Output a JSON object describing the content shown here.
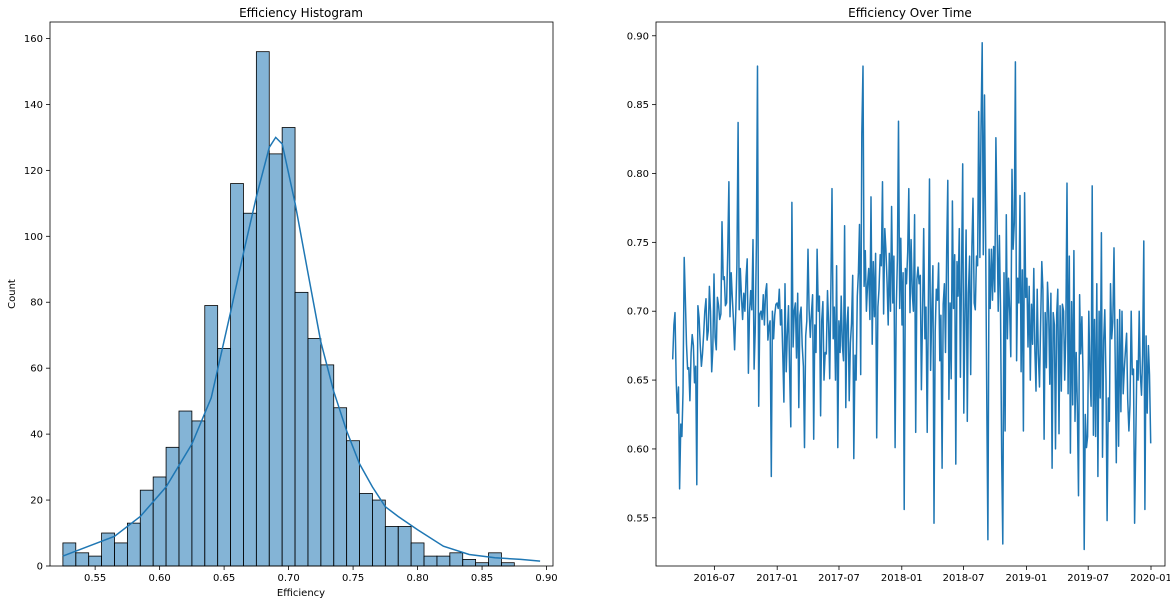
{
  "chart_data": [
    {
      "type": "bar",
      "title": "Efficiency Histogram",
      "xlabel": "Efficiency",
      "ylabel": "Count",
      "xlim": [
        0.515,
        0.905
      ],
      "ylim": [
        0,
        165
      ],
      "bin_width": 0.01,
      "bin_start": 0.525,
      "values": [
        7,
        4,
        3,
        10,
        7,
        13,
        23,
        27,
        36,
        47,
        44,
        79,
        66,
        116,
        107,
        156,
        125,
        133,
        83,
        69,
        61,
        48,
        38,
        22,
        20,
        12,
        12,
        7,
        3,
        3,
        4,
        2,
        1,
        4,
        1
      ],
      "kde": {
        "x": [
          0.525,
          0.545,
          0.565,
          0.585,
          0.605,
          0.625,
          0.64,
          0.655,
          0.665,
          0.675,
          0.685,
          0.69,
          0.695,
          0.705,
          0.715,
          0.725,
          0.735,
          0.745,
          0.755,
          0.765,
          0.775,
          0.785,
          0.8,
          0.82,
          0.84,
          0.86,
          0.88,
          0.895
        ],
        "y": [
          3,
          6,
          9,
          15,
          24,
          37,
          51,
          77,
          95,
          112,
          127,
          130,
          128,
          110,
          89,
          68,
          53,
          41,
          31,
          24,
          18,
          15,
          11,
          6,
          3.5,
          2.5,
          2,
          1.5
        ]
      },
      "xticks": [
        0.55,
        0.6,
        0.65,
        0.7,
        0.75,
        0.8,
        0.85,
        0.9
      ],
      "xtick_labels": [
        "0.55",
        "0.60",
        "0.65",
        "0.70",
        "0.75",
        "0.80",
        "0.85",
        "0.90"
      ],
      "yticks": [
        0,
        20,
        40,
        60,
        80,
        100,
        120,
        140,
        160
      ],
      "ytick_labels": [
        "0",
        "20",
        "40",
        "60",
        "80",
        "100",
        "120",
        "140",
        "160"
      ],
      "grid": false,
      "color": "#1f77b4"
    },
    {
      "type": "line",
      "title": "Efficiency Over Time",
      "xlabel": "",
      "ylabel": "",
      "xlim": [
        "2016-01-12",
        "2020-02-11"
      ],
      "ylim": [
        0.515,
        0.91
      ],
      "x_start": "2016-03-01",
      "x_end": "2019-12-31",
      "y": [
        0.665,
        0.69,
        0.699,
        0.65,
        0.626,
        0.645,
        0.571,
        0.618,
        0.609,
        0.641,
        0.739,
        0.71,
        0.676,
        0.658,
        0.659,
        0.635,
        0.67,
        0.683,
        0.675,
        0.648,
        0.66,
        0.574,
        0.704,
        0.695,
        0.676,
        0.66,
        0.669,
        0.684,
        0.7,
        0.709,
        0.679,
        0.686,
        0.718,
        0.7,
        0.656,
        0.672,
        0.727,
        0.681,
        0.672,
        0.71,
        0.704,
        0.694,
        0.698,
        0.765,
        0.723,
        0.725,
        0.704,
        0.706,
        0.742,
        0.794,
        0.696,
        0.728,
        0.71,
        0.693,
        0.672,
        0.7,
        0.733,
        0.837,
        0.701,
        0.731,
        0.71,
        0.694,
        0.713,
        0.7,
        0.725,
        0.738,
        0.655,
        0.699,
        0.715,
        0.701,
        0.752,
        0.658,
        0.685,
        0.749,
        0.878,
        0.631,
        0.698,
        0.7,
        0.694,
        0.712,
        0.69,
        0.714,
        0.72,
        0.679,
        0.689,
        0.693,
        0.58,
        0.7,
        0.68,
        0.697,
        0.705,
        0.706,
        0.702,
        0.716,
        0.69,
        0.701,
        0.668,
        0.634,
        0.72,
        0.656,
        0.683,
        0.704,
        0.657,
        0.616,
        0.779,
        0.674,
        0.7,
        0.706,
        0.666,
        0.713,
        0.63,
        0.697,
        0.703,
        0.675,
        0.66,
        0.601,
        0.682,
        0.693,
        0.745,
        0.701,
        0.681,
        0.698,
        0.712,
        0.607,
        0.69,
        0.67,
        0.745,
        0.7,
        0.711,
        0.624,
        0.693,
        0.707,
        0.65,
        0.67,
        0.669,
        0.715,
        0.691,
        0.651,
        0.718,
        0.789,
        0.68,
        0.703,
        0.65,
        0.733,
        0.601,
        0.693,
        0.67,
        0.711,
        0.675,
        0.664,
        0.762,
        0.63,
        0.69,
        0.703,
        0.635,
        0.677,
        0.691,
        0.726,
        0.593,
        0.668,
        0.65,
        0.711,
        0.728,
        0.763,
        0.654,
        0.829,
        0.878,
        0.718,
        0.744,
        0.7,
        0.72,
        0.731,
        0.694,
        0.783,
        0.676,
        0.736,
        0.696,
        0.742,
        0.608,
        0.703,
        0.716,
        0.741,
        0.733,
        0.794,
        0.698,
        0.76,
        0.745,
        0.72,
        0.69,
        0.742,
        0.7,
        0.776,
        0.706,
        0.74,
        0.601,
        0.7,
        0.738,
        0.838,
        0.702,
        0.753,
        0.69,
        0.728,
        0.556,
        0.731,
        0.72,
        0.743,
        0.789,
        0.699,
        0.752,
        0.713,
        0.7,
        0.77,
        0.612,
        0.723,
        0.732,
        0.72,
        0.726,
        0.643,
        0.7,
        0.76,
        0.68,
        0.703,
        0.612,
        0.7,
        0.796,
        0.657,
        0.701,
        0.733,
        0.546,
        0.685,
        0.716,
        0.708,
        0.735,
        0.664,
        0.697,
        0.586,
        0.705,
        0.72,
        0.67,
        0.745,
        0.795,
        0.636,
        0.706,
        0.651,
        0.78,
        0.702,
        0.741,
        0.589,
        0.736,
        0.711,
        0.76,
        0.652,
        0.733,
        0.807,
        0.626,
        0.7,
        0.759,
        0.62,
        0.713,
        0.74,
        0.654,
        0.747,
        0.782,
        0.706,
        0.701,
        0.74,
        0.733,
        0.845,
        0.739,
        0.832,
        0.895,
        0.741,
        0.857,
        0.757,
        0.633,
        0.534,
        0.745,
        0.702,
        0.745,
        0.708,
        0.747,
        0.714,
        0.826,
        0.763,
        0.7,
        0.755,
        0.703,
        0.593,
        0.531,
        0.728,
        0.613,
        0.77,
        0.68,
        0.724,
        0.7,
        0.667,
        0.803,
        0.745,
        0.764,
        0.881,
        0.664,
        0.724,
        0.706,
        0.784,
        0.656,
        0.73,
        0.613,
        0.786,
        0.71,
        0.724,
        0.674,
        0.718,
        0.65,
        0.705,
        0.676,
        0.731,
        0.671,
        0.642,
        0.716,
        0.669,
        0.645,
        0.69,
        0.736,
        0.716,
        0.607,
        0.699,
        0.659,
        0.721,
        0.699,
        0.647,
        0.713,
        0.586,
        0.699,
        0.69,
        0.6,
        0.698,
        0.716,
        0.611,
        0.704,
        0.642,
        0.705,
        0.7,
        0.65,
        0.684,
        0.793,
        0.64,
        0.74,
        0.597,
        0.707,
        0.632,
        0.744,
        0.62,
        0.67,
        0.633,
        0.566,
        0.712,
        0.669,
        0.696,
        0.656,
        0.527,
        0.625,
        0.601,
        0.609,
        0.7,
        0.658,
        0.631,
        0.791,
        0.61,
        0.694,
        0.609,
        0.72,
        0.58,
        0.7,
        0.637,
        0.757,
        0.594,
        0.679,
        0.701,
        0.65,
        0.548,
        0.637,
        0.62,
        0.72,
        0.68,
        0.692,
        0.746,
        0.67,
        0.59,
        0.694,
        0.602,
        0.701,
        0.627,
        0.7,
        0.64,
        0.658,
        0.671,
        0.684,
        0.636,
        0.613,
        0.632,
        0.7,
        0.654,
        0.658,
        0.546,
        0.607,
        0.664,
        0.65,
        0.7,
        0.655,
        0.639,
        0.668,
        0.751,
        0.556,
        0.682,
        0.626,
        0.675,
        0.654,
        0.604
      ],
      "xticks": [
        "2016-07-01",
        "2017-01-01",
        "2017-07-01",
        "2018-01-01",
        "2018-07-01",
        "2019-01-01",
        "2019-07-01",
        "2020-01-01"
      ],
      "xtick_labels": [
        "2016-07",
        "2017-01",
        "2017-07",
        "2018-01",
        "2018-07",
        "2019-01",
        "2019-07",
        "2020-01"
      ],
      "yticks": [
        0.55,
        0.6,
        0.65,
        0.7,
        0.75,
        0.8,
        0.85,
        0.9
      ],
      "ytick_labels": [
        "0.55",
        "0.60",
        "0.65",
        "0.70",
        "0.75",
        "0.80",
        "0.85",
        "0.90"
      ],
      "grid": false,
      "color": "#1f77b4"
    }
  ]
}
